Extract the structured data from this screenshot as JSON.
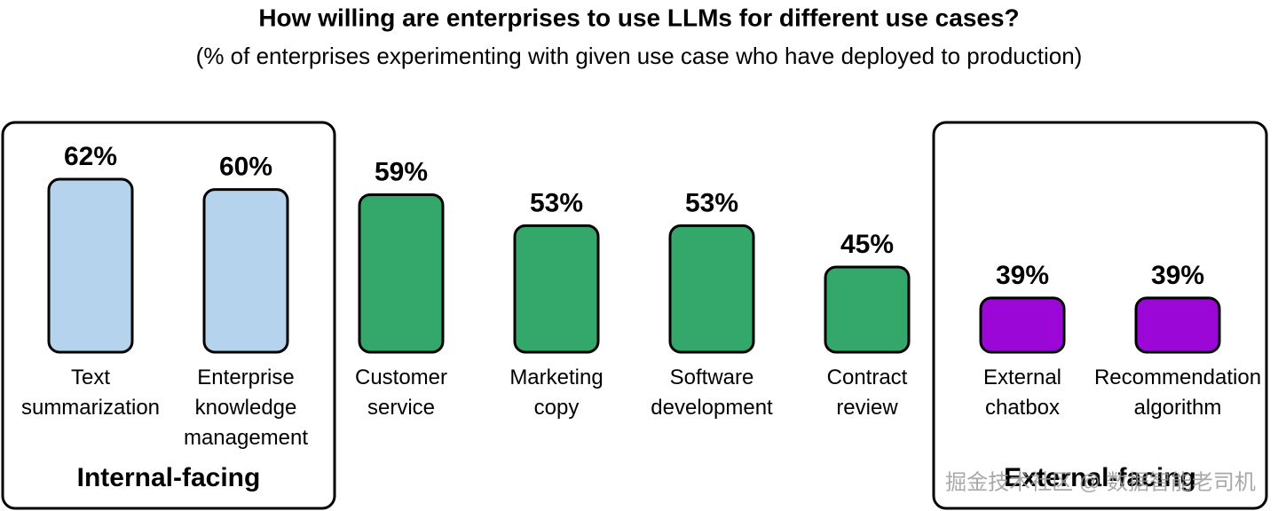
{
  "chart_data": {
    "type": "bar",
    "title": "How willing are enterprises to use LLMs for different use cases?",
    "subtitle": "(% of enterprises experimenting with given use case who have deployed to production)",
    "categories": [
      "Text summarization",
      "Enterprise knowledge management",
      "Customer service",
      "Marketing copy",
      "Software development",
      "Contract review",
      "External chatbox",
      "Recommendation algorithm"
    ],
    "values": [
      62,
      60,
      59,
      53,
      53,
      45,
      39,
      39
    ],
    "value_labels": [
      "62%",
      "60%",
      "59%",
      "53%",
      "53%",
      "45%",
      "39%",
      "39%"
    ],
    "colors": [
      "#b5d3ec",
      "#b5d3ec",
      "#34a86b",
      "#34a86b",
      "#34a86b",
      "#34a86b",
      "#9b07d6",
      "#9b07d6"
    ],
    "ylim": [
      28.5,
      62
    ],
    "groups": [
      {
        "label": "Internal-facing",
        "categories": [
          "Text summarization",
          "Enterprise knowledge management"
        ]
      },
      {
        "label": "External-facing",
        "categories": [
          "External chatbox",
          "Recommendation algorithm"
        ]
      }
    ],
    "watermark": "掘金技术社区 @ 数据智能老司机"
  }
}
